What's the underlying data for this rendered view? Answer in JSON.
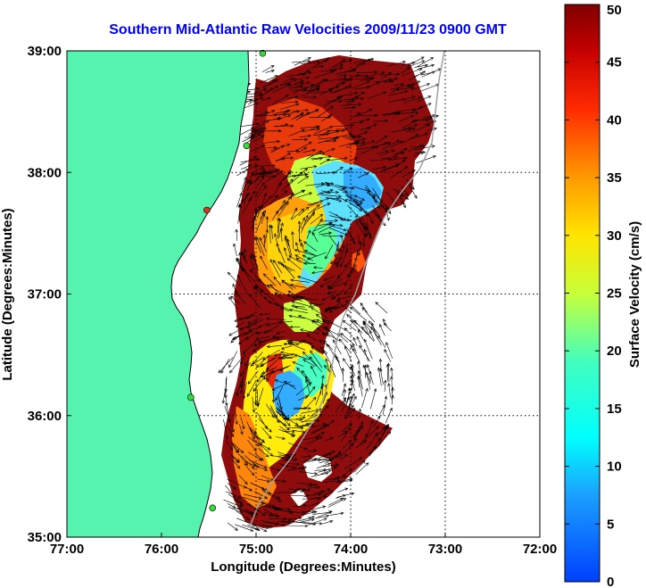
{
  "title": "Southern Mid-Atlantic Raw Velocities 2009/11/23 0900 GMT",
  "colors": {
    "title": "#0000ff",
    "land": "#55f3ae",
    "coast": "#000000",
    "shelf_contour": "#a0a0a0",
    "grid": "#000000"
  },
  "map": {
    "lon_range": [
      -77,
      -72
    ],
    "lat_range": [
      35,
      39
    ],
    "xlabel": "Longitude (Degrees:Minutes)",
    "ylabel": "Latitude (Degrees:Minutes)",
    "x_ticks": [
      {
        "value": -77,
        "label": "77:00"
      },
      {
        "value": -76,
        "label": "76:00"
      },
      {
        "value": -75,
        "label": "75:00"
      },
      {
        "value": -74,
        "label": "74:00"
      },
      {
        "value": -73,
        "label": "73:00"
      },
      {
        "value": -72,
        "label": "72:00"
      }
    ],
    "y_ticks": [
      {
        "value": 35,
        "label": "35:00"
      },
      {
        "value": 36,
        "label": "36:00"
      },
      {
        "value": 37,
        "label": "37:00"
      },
      {
        "value": 38,
        "label": "38:00"
      },
      {
        "value": 39,
        "label": "39:00"
      }
    ],
    "grid": "dotted",
    "stations": [
      {
        "lon": -74.93,
        "lat": 38.98,
        "status": "online",
        "color": "#33dd33"
      },
      {
        "lon": -75.1,
        "lat": 38.22,
        "status": "online",
        "color": "#33dd33"
      },
      {
        "lon": -75.52,
        "lat": 37.69,
        "status": "offline",
        "color": "#e03020"
      },
      {
        "lon": -75.69,
        "lat": 36.15,
        "status": "online",
        "color": "#33dd33"
      },
      {
        "lon": -75.46,
        "lat": 35.24,
        "status": "online",
        "color": "#33dd33"
      }
    ]
  },
  "colorbar": {
    "label": "Surface Velocity (cm/s)",
    "range": [
      0,
      50
    ],
    "ticks": [
      {
        "value": 0,
        "label": "0"
      },
      {
        "value": 5,
        "label": "5"
      },
      {
        "value": 10,
        "label": "10"
      },
      {
        "value": 15,
        "label": "15"
      },
      {
        "value": 20,
        "label": "20"
      },
      {
        "value": 25,
        "label": "25"
      },
      {
        "value": 30,
        "label": "30"
      },
      {
        "value": 35,
        "label": "35"
      },
      {
        "value": 40,
        "label": "40"
      },
      {
        "value": 45,
        "label": "45"
      },
      {
        "value": 50,
        "label": "50"
      }
    ],
    "colormap": "jet"
  }
}
